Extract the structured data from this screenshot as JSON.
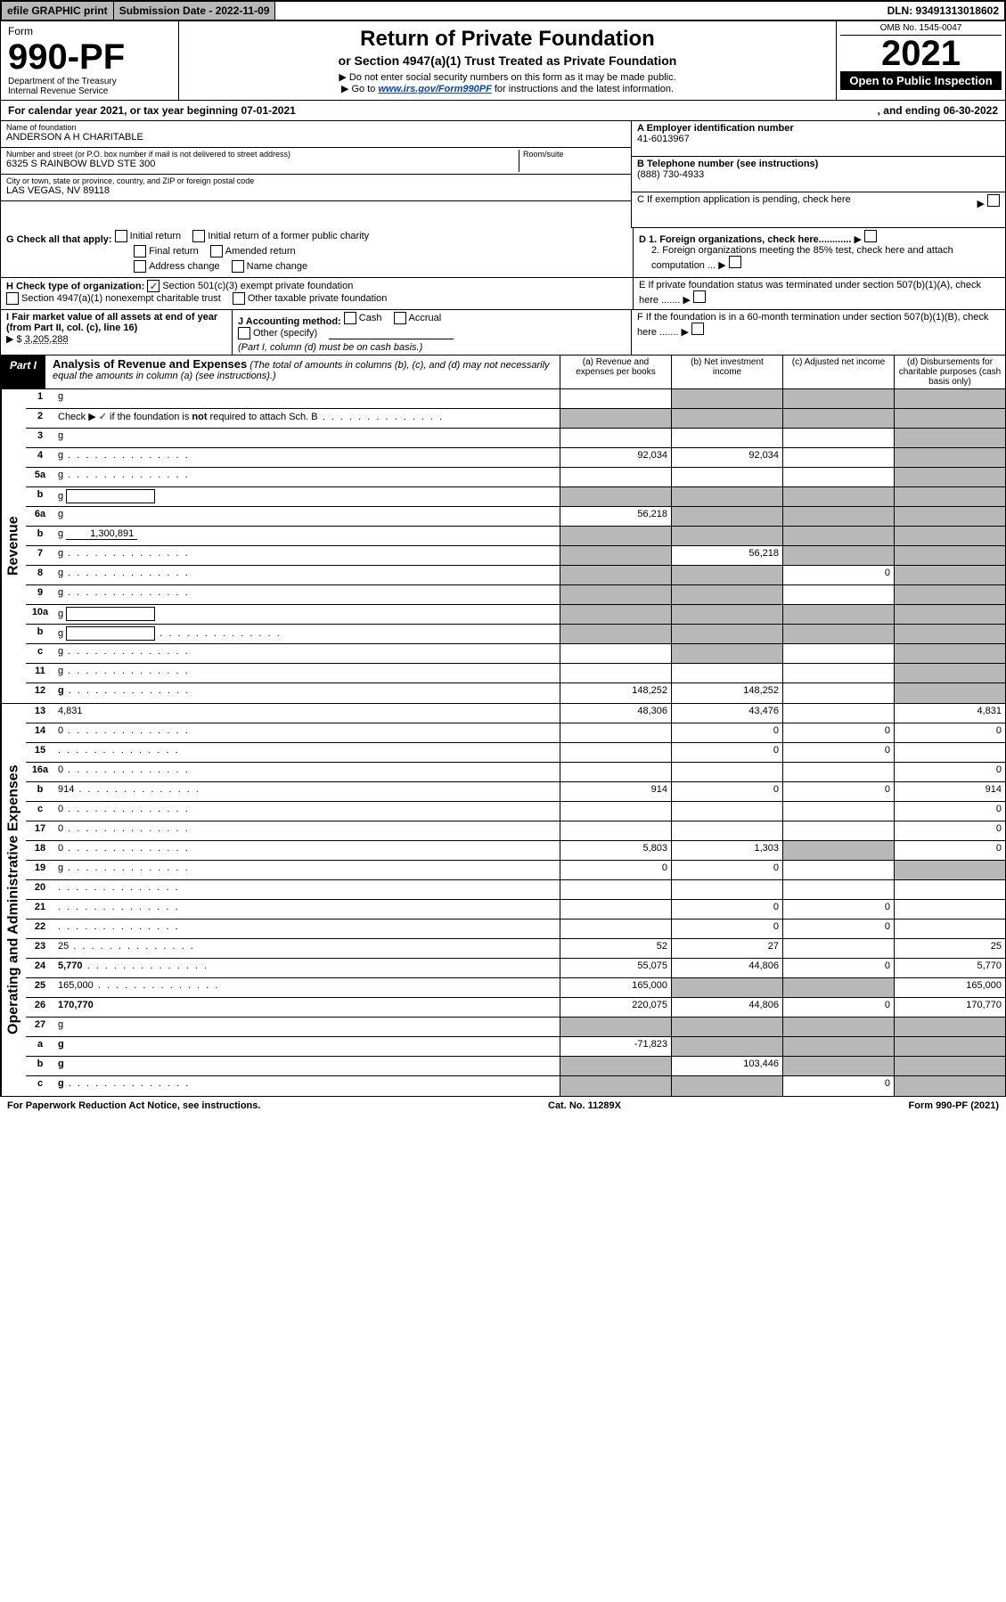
{
  "topbar": {
    "efile": "efile GRAPHIC print",
    "subdate_label": "Submission Date - 2022-11-09",
    "dln": "DLN: 93491313018602"
  },
  "header": {
    "form_label": "Form",
    "form_number": "990-PF",
    "dept1": "Department of the Treasury",
    "dept2": "Internal Revenue Service",
    "title": "Return of Private Foundation",
    "subtitle": "or Section 4947(a)(1) Trust Treated as Private Foundation",
    "note1": "▶ Do not enter social security numbers on this form as it may be made public.",
    "note2_prefix": "▶ Go to ",
    "note2_link": "www.irs.gov/Form990PF",
    "note2_suffix": " for instructions and the latest information.",
    "omb": "OMB No. 1545-0047",
    "year": "2021",
    "open_public": "Open to Public Inspection"
  },
  "cal": {
    "text": "For calendar year 2021, or tax year beginning 07-01-2021",
    "end": ", and ending 06-30-2022"
  },
  "id": {
    "name_label": "Name of foundation",
    "name": "ANDERSON A H CHARITABLE",
    "addr_label": "Number and street (or P.O. box number if mail is not delivered to street address)",
    "addr": "6325 S RAINBOW BLVD STE 300",
    "room_label": "Room/suite",
    "city_label": "City or town, state or province, country, and ZIP or foreign postal code",
    "city": "LAS VEGAS, NV  89118",
    "a_label": "A Employer identification number",
    "a_val": "41-6013967",
    "b_label": "B Telephone number (see instructions)",
    "b_val": "(888) 730-4933",
    "c_label": "C If exemption application is pending, check here",
    "d1": "D 1. Foreign organizations, check here............",
    "d2": "2. Foreign organizations meeting the 85% test, check here and attach computation ...",
    "e_label": "E  If private foundation status was terminated under section 507(b)(1)(A), check here .......",
    "f_label": "F  If the foundation is in a 60-month termination under section 507(b)(1)(B), check here ......."
  },
  "g": {
    "label": "G Check all that apply:",
    "opts": [
      "Initial return",
      "Final return",
      "Address change",
      "Initial return of a former public charity",
      "Amended return",
      "Name change"
    ]
  },
  "h": {
    "label": "H Check type of organization:",
    "opt1": "Section 501(c)(3) exempt private foundation",
    "opt2": "Section 4947(a)(1) nonexempt charitable trust",
    "opt3": "Other taxable private foundation"
  },
  "i": {
    "label": "I Fair market value of all assets at end of year (from Part II, col. (c), line 16)",
    "val": "3,205,288"
  },
  "j": {
    "label": "J Accounting method:",
    "cash": "Cash",
    "accrual": "Accrual",
    "other": "Other (specify)",
    "note": "(Part I, column (d) must be on cash basis.)"
  },
  "part1": {
    "label": "Part I",
    "title": "Analysis of Revenue and Expenses",
    "note": "(The total of amounts in columns (b), (c), and (d) may not necessarily equal the amounts in column (a) (see instructions).)",
    "col_a": "(a) Revenue and expenses per books",
    "col_b": "(b) Net investment income",
    "col_c": "(c) Adjusted net income",
    "col_d": "(d) Disbursements for charitable purposes (cash basis only)"
  },
  "revenue_label": "Revenue",
  "expenses_label": "Operating and Administrative Expenses",
  "rows": [
    {
      "n": "1",
      "d": "g",
      "a": "",
      "b": "g",
      "c": "g"
    },
    {
      "n": "2",
      "d": "g",
      "dots": true,
      "a": "g",
      "b": "g",
      "c": "g",
      "blue": true
    },
    {
      "n": "3",
      "d": "g",
      "a": "",
      "b": "",
      "c": ""
    },
    {
      "n": "4",
      "d": "g",
      "dots": true,
      "a": "92,034",
      "b": "92,034",
      "c": ""
    },
    {
      "n": "5a",
      "d": "g",
      "dots": true,
      "a": "",
      "b": "",
      "c": ""
    },
    {
      "n": "b",
      "d": "g",
      "box": true,
      "a": "g",
      "b": "g",
      "c": "g"
    },
    {
      "n": "6a",
      "d": "g",
      "a": "56,218",
      "b": "g",
      "c": "g"
    },
    {
      "n": "b",
      "d": "g",
      "under": "1,300,891",
      "a": "g",
      "b": "g",
      "c": "g"
    },
    {
      "n": "7",
      "d": "g",
      "dots": true,
      "a": "g",
      "b": "56,218",
      "c": "g"
    },
    {
      "n": "8",
      "d": "g",
      "dots": true,
      "a": "g",
      "b": "g",
      "c": "0"
    },
    {
      "n": "9",
      "d": "g",
      "dots": true,
      "a": "g",
      "b": "g",
      "c": ""
    },
    {
      "n": "10a",
      "d": "g",
      "box": true,
      "a": "g",
      "b": "g",
      "c": "g"
    },
    {
      "n": "b",
      "d": "g",
      "dots": true,
      "box": true,
      "a": "g",
      "b": "g",
      "c": "g"
    },
    {
      "n": "c",
      "d": "g",
      "dots": true,
      "a": "",
      "b": "g",
      "c": ""
    },
    {
      "n": "11",
      "d": "g",
      "dots": true,
      "a": "",
      "b": "",
      "c": ""
    },
    {
      "n": "12",
      "d": "g",
      "dots": true,
      "bold": true,
      "a": "148,252",
      "b": "148,252",
      "c": ""
    }
  ],
  "exp_rows": [
    {
      "n": "13",
      "d": "4,831",
      "a": "48,306",
      "b": "43,476",
      "c": ""
    },
    {
      "n": "14",
      "d": "0",
      "dots": true,
      "a": "",
      "b": "0",
      "c": "0"
    },
    {
      "n": "15",
      "d": "",
      "dots": true,
      "a": "",
      "b": "0",
      "c": "0"
    },
    {
      "n": "16a",
      "d": "0",
      "dots": true,
      "a": "",
      "b": "",
      "c": ""
    },
    {
      "n": "b",
      "d": "914",
      "dots": true,
      "a": "914",
      "b": "0",
      "c": "0"
    },
    {
      "n": "c",
      "d": "0",
      "dots": true,
      "a": "",
      "b": "",
      "c": ""
    },
    {
      "n": "17",
      "d": "0",
      "dots": true,
      "a": "",
      "b": "",
      "c": ""
    },
    {
      "n": "18",
      "d": "0",
      "dots": true,
      "a": "5,803",
      "b": "1,303",
      "c": "g"
    },
    {
      "n": "19",
      "d": "g",
      "dots": true,
      "a": "0",
      "b": "0",
      "c": ""
    },
    {
      "n": "20",
      "d": "",
      "dots": true,
      "a": "",
      "b": "",
      "c": ""
    },
    {
      "n": "21",
      "d": "",
      "dots": true,
      "a": "",
      "b": "0",
      "c": "0"
    },
    {
      "n": "22",
      "d": "",
      "dots": true,
      "a": "",
      "b": "0",
      "c": "0"
    },
    {
      "n": "23",
      "d": "25",
      "dots": true,
      "a": "52",
      "b": "27",
      "c": ""
    },
    {
      "n": "24",
      "d": "5,770",
      "dots": true,
      "bold": true,
      "a": "55,075",
      "b": "44,806",
      "c": "0"
    },
    {
      "n": "25",
      "d": "165,000",
      "dots": true,
      "a": "165,000",
      "b": "g",
      "c": "g"
    },
    {
      "n": "26",
      "d": "170,770",
      "bold": true,
      "a": "220,075",
      "b": "44,806",
      "c": "0"
    },
    {
      "n": "27",
      "d": "g",
      "a": "g",
      "b": "g",
      "c": "g"
    },
    {
      "n": "a",
      "d": "g",
      "bold": true,
      "a": "-71,823",
      "b": "g",
      "c": "g"
    },
    {
      "n": "b",
      "d": "g",
      "bold": true,
      "a": "g",
      "b": "103,446",
      "c": "g"
    },
    {
      "n": "c",
      "d": "g",
      "dots": true,
      "bold": true,
      "a": "g",
      "b": "g",
      "c": "0"
    }
  ],
  "footer": {
    "left": "For Paperwork Reduction Act Notice, see instructions.",
    "mid": "Cat. No. 11289X",
    "right": "Form 990-PF (2021)"
  },
  "colors": {
    "grey": "#b8b8b8",
    "link": "#0645ad",
    "check": "#2a6496"
  }
}
